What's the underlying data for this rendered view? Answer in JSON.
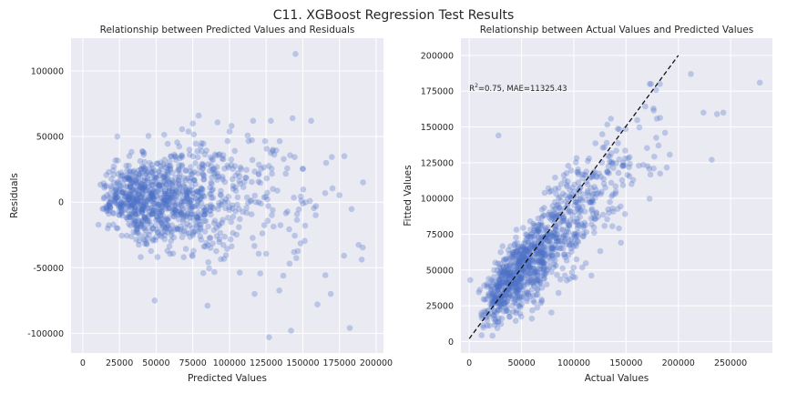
{
  "figure": {
    "suptitle": "C11. XGBoost Regression Test Results",
    "colors": {
      "background": "#eaeaf2",
      "grid": "#ffffff",
      "points": "#4c72c8",
      "reference_line": "#111111"
    }
  },
  "chart_data": [
    {
      "type": "scatter",
      "title": "Relationship between Predicted Values and Residuals",
      "xlabel": "Predicted Values",
      "ylabel": "Residuals",
      "xlim": [
        -8000,
        205000
      ],
      "ylim": [
        -115000,
        125000
      ],
      "xticks": [
        0,
        25000,
        50000,
        75000,
        100000,
        125000,
        150000,
        175000,
        200000
      ],
      "yticks": [
        -100000,
        -50000,
        0,
        50000,
        100000
      ],
      "grid": true,
      "marker": "filled circle, alpha 0.3",
      "notable_points": [
        {
          "x": 145000,
          "y": 113000
        },
        {
          "x": 127000,
          "y": -103000
        },
        {
          "x": 142000,
          "y": -98000
        },
        {
          "x": 182000,
          "y": -96000
        },
        {
          "x": 85000,
          "y": -79000
        },
        {
          "x": 49000,
          "y": -75000
        },
        {
          "x": 160000,
          "y": -78000
        },
        {
          "x": 143000,
          "y": 64000
        },
        {
          "x": 75000,
          "y": 60000
        },
        {
          "x": 79000,
          "y": 66000
        }
      ],
      "sample_size": 1100,
      "seed": 11
    },
    {
      "type": "scatter",
      "title": "Relationship between Actual Values and Predicted Values",
      "xlabel": "Actual Values",
      "ylabel": "Fitted Values",
      "xlim": [
        -8000,
        290000
      ],
      "ylim": [
        -8000,
        212000
      ],
      "xticks": [
        0,
        50000,
        100000,
        150000,
        200000,
        250000
      ],
      "yticks": [
        0,
        25000,
        50000,
        75000,
        100000,
        125000,
        150000,
        175000,
        200000
      ],
      "grid": true,
      "annotation": {
        "r2_label": "R",
        "r2_sup": "2",
        "r2_value": "=0.75, MAE=11325.43",
        "x": 0,
        "y": 175000
      },
      "reference_line": {
        "style": "dashed",
        "from": [
          0,
          2000
        ],
        "to": [
          200000,
          200000
        ]
      },
      "notable_points": [
        {
          "x": 278000,
          "y": 181000
        },
        {
          "x": 243000,
          "y": 160000
        },
        {
          "x": 237000,
          "y": 159000
        },
        {
          "x": 232000,
          "y": 127000
        },
        {
          "x": 224000,
          "y": 160000
        },
        {
          "x": 212000,
          "y": 187000
        },
        {
          "x": 1000,
          "y": 43000
        },
        {
          "x": 28000,
          "y": 144000
        }
      ],
      "sample_size": 1100,
      "seed": 23
    }
  ]
}
